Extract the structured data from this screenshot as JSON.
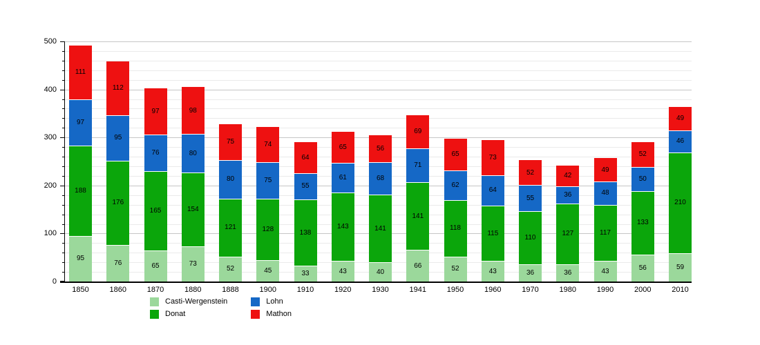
{
  "chart_data": {
    "type": "bar",
    "stacked": true,
    "title": "",
    "xlabel": "",
    "ylabel": "",
    "categories": [
      "1850",
      "1860",
      "1870",
      "1880",
      "1888",
      "1900",
      "1910",
      "1920",
      "1930",
      "1941",
      "1950",
      "1960",
      "1970",
      "1980",
      "1990",
      "2000",
      "2010"
    ],
    "series": [
      {
        "name": "Casti-Wergenstein",
        "color": "#9bd89b",
        "values": [
          95,
          76,
          65,
          73,
          52,
          45,
          33,
          43,
          40,
          66,
          52,
          43,
          36,
          36,
          43,
          56,
          59
        ]
      },
      {
        "name": "Donat",
        "color": "#0ba60b",
        "values": [
          188,
          176,
          165,
          154,
          121,
          128,
          138,
          143,
          141,
          141,
          118,
          115,
          110,
          127,
          117,
          133,
          210
        ]
      },
      {
        "name": "Lohn",
        "color": "#1568c6",
        "values": [
          97,
          95,
          76,
          80,
          80,
          75,
          55,
          61,
          68,
          71,
          62,
          64,
          55,
          36,
          48,
          50,
          46
        ]
      },
      {
        "name": "Mathon",
        "color": "#ee1111",
        "values": [
          111,
          112,
          97,
          98,
          75,
          74,
          64,
          65,
          56,
          69,
          65,
          73,
          52,
          42,
          49,
          52,
          49
        ]
      }
    ],
    "ylim": [
      0,
      500
    ],
    "y_major_ticks": [
      0,
      100,
      200,
      300,
      400,
      500
    ],
    "y_minor_step": 20,
    "grid": "on",
    "legend_position": "bottom-left",
    "bar_value_labels": "shown inside segments",
    "colors": {
      "background": "#ffffff",
      "axis": "#000000",
      "grid_minor": "#eaeaea",
      "grid_major": "#c6c6c6",
      "label_text": "#000000"
    }
  }
}
